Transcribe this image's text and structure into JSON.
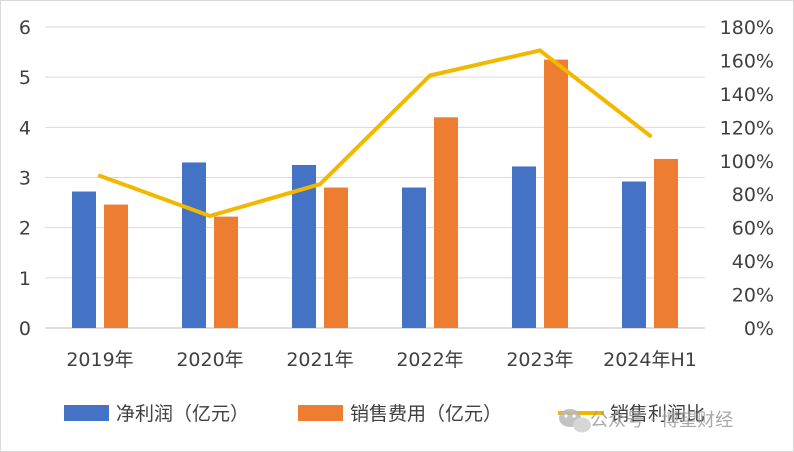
{
  "chart_data": {
    "type": "bar",
    "categories": [
      "2019年",
      "2020年",
      "2021年",
      "2022年",
      "2023年",
      "2024年H1"
    ],
    "series": [
      {
        "name": "净利润（亿元）",
        "type": "bar",
        "axis": "left",
        "color": "#4472C4",
        "values": [
          2.72,
          3.3,
          3.25,
          2.8,
          3.22,
          2.92
        ]
      },
      {
        "name": "销售费用（亿元）",
        "type": "bar",
        "axis": "left",
        "color": "#ED7D31",
        "values": [
          2.46,
          2.22,
          2.8,
          4.2,
          5.35,
          3.37
        ]
      },
      {
        "name": "销售利润比",
        "type": "line",
        "axis": "right",
        "color": "#F2B800",
        "values": [
          91,
          67,
          86,
          151,
          166,
          115
        ]
      }
    ],
    "left_axis": {
      "min": 0,
      "max": 6,
      "ticks": [
        "0",
        "1",
        "2",
        "3",
        "4",
        "5",
        "6"
      ]
    },
    "right_axis": {
      "min": 0,
      "max": 180,
      "ticks": [
        "0%",
        "20%",
        "40%",
        "60%",
        "80%",
        "100%",
        "120%",
        "140%",
        "160%",
        "180%"
      ]
    },
    "grid": "horizontal",
    "legend": "bottom"
  },
  "watermark": {
    "text": "公众号 · 博望财经",
    "icon": "wechat-icon"
  }
}
